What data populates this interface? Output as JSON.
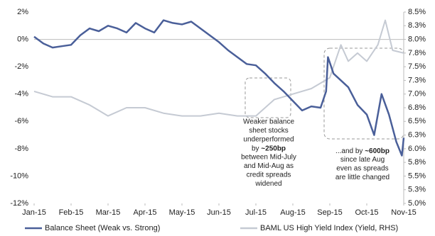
{
  "chart_data": {
    "type": "line",
    "xlim": [
      0,
      10
    ],
    "xticks": [
      {
        "value": 0,
        "label": "Jan-15"
      },
      {
        "value": 1,
        "label": "Feb-15"
      },
      {
        "value": 2,
        "label": "Mar-15"
      },
      {
        "value": 3,
        "label": "Apr-15"
      },
      {
        "value": 4,
        "label": "May-15"
      },
      {
        "value": 5,
        "label": "Jun-15"
      },
      {
        "value": 6,
        "label": "Jul-15"
      },
      {
        "value": 7,
        "label": "Aug-15"
      },
      {
        "value": 8,
        "label": "Sep-15"
      },
      {
        "value": 9,
        "label": "Oct-15"
      },
      {
        "value": 10,
        "label": "Nov-15"
      }
    ],
    "ylim": [
      -12,
      2
    ],
    "yticks": [
      {
        "value": 2,
        "label": "2%"
      },
      {
        "value": 0,
        "label": "0%"
      },
      {
        "value": -2,
        "label": "-2%"
      },
      {
        "value": -4,
        "label": "-4%"
      },
      {
        "value": -6,
        "label": "-6%"
      },
      {
        "value": -8,
        "label": "-8%"
      },
      {
        "value": -10,
        "label": "-10%"
      },
      {
        "value": -12,
        "label": "-12%"
      }
    ],
    "y2lim": [
      5.0,
      8.5
    ],
    "y2ticks": [
      {
        "value": 8.5,
        "label": "8.5%"
      },
      {
        "value": 8.25,
        "label": "8.3%"
      },
      {
        "value": 8.0,
        "label": "8.0%"
      },
      {
        "value": 7.75,
        "label": "7.8%"
      },
      {
        "value": 7.5,
        "label": "7.5%"
      },
      {
        "value": 7.25,
        "label": "7.3%"
      },
      {
        "value": 7.0,
        "label": "7.0%"
      },
      {
        "value": 6.75,
        "label": "6.8%"
      },
      {
        "value": 6.5,
        "label": "6.5%"
      },
      {
        "value": 6.25,
        "label": "6.3%"
      },
      {
        "value": 6.0,
        "label": "6.0%"
      },
      {
        "value": 5.75,
        "label": "5.8%"
      },
      {
        "value": 5.5,
        "label": "5.5%"
      },
      {
        "value": 5.25,
        "label": "5.3%"
      },
      {
        "value": 5.0,
        "label": "5.0%"
      }
    ],
    "legend": "bottom",
    "series": [
      {
        "name": "Balance Sheet (Weak vs. Strong)",
        "color": "#4a5f99",
        "axis": "y",
        "x": [
          0,
          0.25,
          0.5,
          0.75,
          1,
          1.25,
          1.5,
          1.75,
          2,
          2.25,
          2.5,
          2.75,
          3,
          3.25,
          3.5,
          3.75,
          4,
          4.25,
          4.5,
          4.75,
          5,
          5.25,
          5.5,
          5.75,
          6,
          6.25,
          6.5,
          6.75,
          7,
          7.25,
          7.5,
          7.75,
          7.9,
          7.95,
          8.1,
          8.3,
          8.5,
          8.75,
          9,
          9.2,
          9.4,
          9.6,
          9.8,
          9.95,
          10
        ],
        "values": [
          0.2,
          -0.3,
          -0.6,
          -0.5,
          -0.4,
          0.3,
          0.8,
          0.6,
          1.0,
          0.8,
          0.5,
          1.2,
          0.8,
          0.5,
          1.4,
          1.2,
          1.1,
          1.3,
          0.8,
          0.3,
          -0.2,
          -0.8,
          -1.3,
          -1.8,
          -1.9,
          -2.5,
          -3.2,
          -3.8,
          -4.5,
          -5.2,
          -4.9,
          -5.0,
          -3.8,
          -1.3,
          -2.5,
          -3.0,
          -3.5,
          -4.8,
          -5.5,
          -7.0,
          -4.0,
          -5.5,
          -7.5,
          -8.5,
          -7.2
        ]
      },
      {
        "name": "BAML US High Yield Index (Yield, RHS)",
        "color": "#c5cad3",
        "axis": "y2",
        "x": [
          0,
          0.5,
          1,
          1.5,
          2,
          2.5,
          3,
          3.5,
          4,
          4.5,
          5,
          5.5,
          6,
          6.5,
          7,
          7.5,
          8,
          8.3,
          8.5,
          8.75,
          9,
          9.3,
          9.5,
          9.7,
          10
        ],
        "values": [
          7.05,
          6.95,
          6.95,
          6.8,
          6.6,
          6.75,
          6.75,
          6.65,
          6.6,
          6.6,
          6.65,
          6.6,
          6.6,
          6.9,
          7.0,
          7.1,
          7.3,
          7.9,
          7.6,
          7.75,
          7.6,
          7.9,
          8.35,
          7.8,
          7.75
        ]
      }
    ],
    "annotations": [
      {
        "lines": [
          "Weaker balance",
          "sheet stocks",
          "underperformed",
          {
            "pre": "by ",
            "bold": "~250bp"
          },
          "between Mid-July",
          "and Mid-Aug as",
          "credit spreads",
          "widened"
        ]
      },
      {
        "lines": [
          {
            "pre": "...and by ",
            "bold": "~600bp"
          },
          "since late Aug",
          "even as spreads",
          "are little changed"
        ]
      }
    ]
  }
}
